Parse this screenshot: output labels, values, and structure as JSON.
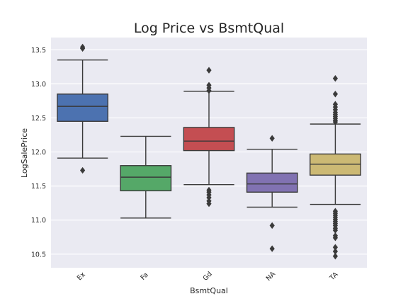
{
  "chart_data": {
    "type": "box",
    "title": "Log Price vs BsmtQual",
    "xlabel": "BsmtQual",
    "ylabel": "LogSalePrice",
    "ylim": [
      10.3,
      13.68
    ],
    "yticks": [
      10.5,
      11.0,
      11.5,
      12.0,
      12.5,
      13.0,
      13.5
    ],
    "ytick_labels": [
      "10.5",
      "11.0",
      "11.5",
      "12.0",
      "12.5",
      "13.0",
      "13.5"
    ],
    "grid": true,
    "categories": [
      "Ex",
      "Fa",
      "Gd",
      "NA",
      "TA"
    ],
    "boxes": [
      {
        "category": "Ex",
        "color": "#4c72b0",
        "whisker_low": 11.91,
        "q1": 12.45,
        "median": 12.67,
        "q3": 12.85,
        "whisker_high": 13.35,
        "outliers": [
          13.54,
          13.52,
          11.73
        ]
      },
      {
        "category": "Fa",
        "color": "#55a868",
        "whisker_low": 11.03,
        "q1": 11.43,
        "median": 11.63,
        "q3": 11.8,
        "whisker_high": 12.23,
        "outliers": []
      },
      {
        "category": "Gd",
        "color": "#c44e52",
        "whisker_low": 11.52,
        "q1": 12.02,
        "median": 12.16,
        "q3": 12.36,
        "whisker_high": 12.89,
        "outliers": [
          13.2,
          12.98,
          12.94,
          12.9,
          11.44,
          11.41,
          11.37,
          11.33,
          11.28,
          11.24
        ]
      },
      {
        "category": "NA",
        "color": "#8172b2",
        "whisker_low": 11.19,
        "q1": 11.41,
        "median": 11.53,
        "q3": 11.69,
        "whisker_high": 12.04,
        "outliers": [
          12.2,
          10.92,
          10.58
        ]
      },
      {
        "category": "TA",
        "color": "#ccb974",
        "whisker_low": 11.23,
        "q1": 11.66,
        "median": 11.82,
        "q3": 11.97,
        "whisker_high": 12.41,
        "outliers": [
          13.08,
          12.85,
          12.7,
          12.66,
          12.62,
          12.58,
          12.55,
          12.52,
          12.49,
          12.46,
          12.44,
          11.13,
          11.1,
          11.07,
          11.04,
          11.01,
          10.98,
          10.95,
          10.92,
          10.88,
          10.85,
          10.77,
          10.74,
          10.6,
          10.54,
          10.47
        ]
      }
    ]
  }
}
